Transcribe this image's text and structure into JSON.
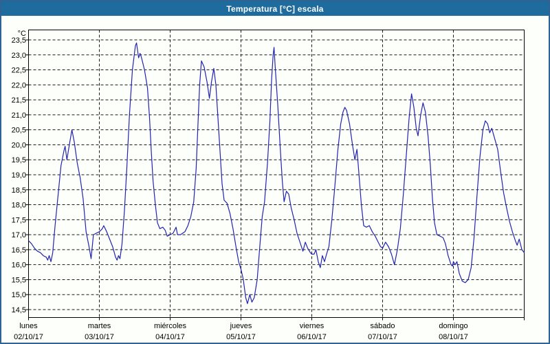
{
  "window": {
    "title": "Temperatura [°C] escala"
  },
  "axes": {
    "unit_label": "°C",
    "y_min": 14.5,
    "y_max": 23.5,
    "y_step": 0.5,
    "decimal_separator": ",",
    "days": [
      {
        "weekday": "lunes",
        "date": "02/10/17"
      },
      {
        "weekday": "martes",
        "date": "03/10/17"
      },
      {
        "weekday": "miércoles",
        "date": "04/10/17"
      },
      {
        "weekday": "jueves",
        "date": "05/10/17"
      },
      {
        "weekday": "viernes",
        "date": "06/10/17"
      },
      {
        "weekday": "sábado",
        "date": "07/10/17"
      },
      {
        "weekday": "domingo",
        "date": "08/10/17"
      }
    ]
  },
  "chart_data": {
    "type": "line",
    "title": "Temperatura [°C] escala",
    "ylabel": "°C",
    "ylim": [
      14.2,
      23.8
    ],
    "yticks": [
      23.5,
      23.0,
      22.5,
      22.0,
      21.5,
      21.0,
      20.5,
      20.0,
      19.5,
      19.0,
      18.5,
      18.0,
      17.5,
      17.0,
      16.5,
      16.0,
      15.5,
      15.0,
      14.5
    ],
    "x_unit": "hours since lunes 00:00",
    "xlim": [
      0,
      168
    ],
    "grid": true,
    "legend": "none",
    "series": [
      {
        "name": "Temperatura",
        "points": [
          [
            0,
            16.8
          ],
          [
            1,
            16.7
          ],
          [
            2,
            16.55
          ],
          [
            3,
            16.45
          ],
          [
            4,
            16.4
          ],
          [
            5,
            16.3
          ],
          [
            6,
            16.25
          ],
          [
            6.5,
            16.15
          ],
          [
            7,
            16.3
          ],
          [
            7.6,
            16.1
          ],
          [
            8.2,
            16.4
          ],
          [
            9,
            17.3
          ],
          [
            10,
            18.3
          ],
          [
            11,
            19.3
          ],
          [
            12,
            19.8
          ],
          [
            12.4,
            19.95
          ],
          [
            13,
            19.5
          ],
          [
            14,
            20.1
          ],
          [
            14.7,
            20.5
          ],
          [
            15.5,
            20.1
          ],
          [
            16.5,
            19.4
          ],
          [
            17.5,
            18.9
          ],
          [
            18.5,
            18.2
          ],
          [
            19.5,
            17.1
          ],
          [
            20.5,
            16.6
          ],
          [
            21.2,
            16.2
          ],
          [
            22,
            17.0
          ],
          [
            23,
            17.05
          ],
          [
            24,
            17.1
          ],
          [
            25,
            17.2
          ],
          [
            25.5,
            17.3
          ],
          [
            26.5,
            17.1
          ],
          [
            27.5,
            16.85
          ],
          [
            28.5,
            16.6
          ],
          [
            29.5,
            16.25
          ],
          [
            30,
            16.15
          ],
          [
            30.5,
            16.3
          ],
          [
            31,
            16.2
          ],
          [
            31.7,
            16.7
          ],
          [
            32.5,
            17.8
          ],
          [
            33.3,
            19.2
          ],
          [
            34.2,
            21.0
          ],
          [
            35.2,
            22.5
          ],
          [
            36.2,
            23.3
          ],
          [
            36.6,
            23.4
          ],
          [
            37.3,
            22.9
          ],
          [
            37.8,
            23.05
          ],
          [
            38.3,
            22.9
          ],
          [
            39.3,
            22.5
          ],
          [
            40.3,
            21.9
          ],
          [
            41,
            20.9
          ],
          [
            41.6,
            19.8
          ],
          [
            42.2,
            18.8
          ],
          [
            43,
            18.0
          ],
          [
            43.7,
            17.4
          ],
          [
            44.5,
            17.2
          ],
          [
            45.5,
            17.25
          ],
          [
            46.3,
            17.15
          ],
          [
            47,
            16.95
          ],
          [
            48,
            17.0
          ],
          [
            49,
            17.05
          ],
          [
            50,
            17.25
          ],
          [
            50.5,
            17.0
          ],
          [
            51.5,
            17.0
          ],
          [
            53,
            17.1
          ],
          [
            54,
            17.3
          ],
          [
            55,
            17.6
          ],
          [
            56,
            18.1
          ],
          [
            56.8,
            19.2
          ],
          [
            57.4,
            20.6
          ],
          [
            58,
            22.0
          ],
          [
            58.6,
            22.8
          ],
          [
            59.5,
            22.6
          ],
          [
            60.5,
            22.1
          ],
          [
            61.3,
            21.55
          ],
          [
            62,
            22.1
          ],
          [
            62.8,
            22.55
          ],
          [
            63.5,
            22.0
          ],
          [
            64.2,
            20.9
          ],
          [
            64.9,
            19.8
          ],
          [
            65.6,
            18.7
          ],
          [
            66.3,
            18.15
          ],
          [
            67.3,
            18.05
          ],
          [
            68.3,
            17.7
          ],
          [
            69.3,
            17.2
          ],
          [
            70.3,
            16.6
          ],
          [
            71.2,
            16.1
          ],
          [
            72,
            15.85
          ],
          [
            72.8,
            15.5
          ],
          [
            73.6,
            14.9
          ],
          [
            74.2,
            14.7
          ],
          [
            75,
            15.0
          ],
          [
            75.7,
            14.75
          ],
          [
            76.5,
            14.9
          ],
          [
            77.5,
            15.5
          ],
          [
            78.3,
            16.5
          ],
          [
            79.2,
            17.6
          ],
          [
            80,
            18.1
          ],
          [
            81,
            19.4
          ],
          [
            81.8,
            20.8
          ],
          [
            82.4,
            22.2
          ],
          [
            82.9,
            23.0
          ],
          [
            83.2,
            23.25
          ],
          [
            83.6,
            22.6
          ],
          [
            84.5,
            21.3
          ],
          [
            85.3,
            19.9
          ],
          [
            86,
            18.8
          ],
          [
            86.6,
            18.1
          ],
          [
            87.4,
            18.45
          ],
          [
            88.2,
            18.35
          ],
          [
            89,
            17.9
          ],
          [
            90,
            17.5
          ],
          [
            91,
            17.05
          ],
          [
            92,
            16.75
          ],
          [
            93,
            16.45
          ],
          [
            93.8,
            16.75
          ],
          [
            94.6,
            16.55
          ],
          [
            95.5,
            16.4
          ],
          [
            96,
            16.35
          ],
          [
            96.8,
            16.35
          ],
          [
            97.4,
            16.5
          ],
          [
            98.2,
            16.1
          ],
          [
            98.9,
            15.9
          ],
          [
            99.6,
            16.3
          ],
          [
            100.3,
            16.1
          ],
          [
            101,
            16.35
          ],
          [
            101.8,
            16.6
          ],
          [
            102.8,
            17.5
          ],
          [
            103.8,
            18.6
          ],
          [
            104.8,
            19.8
          ],
          [
            105.8,
            20.7
          ],
          [
            106.6,
            21.1
          ],
          [
            107.2,
            21.25
          ],
          [
            107.8,
            21.15
          ],
          [
            108.8,
            20.7
          ],
          [
            109.8,
            20.0
          ],
          [
            110.6,
            19.5
          ],
          [
            111.3,
            19.85
          ],
          [
            112,
            19.0
          ],
          [
            112.8,
            18.0
          ],
          [
            113.6,
            17.3
          ],
          [
            114.5,
            17.25
          ],
          [
            115.5,
            17.3
          ],
          [
            116.5,
            17.1
          ],
          [
            117.5,
            16.95
          ],
          [
            118.5,
            16.75
          ],
          [
            119.3,
            16.6
          ],
          [
            120,
            16.55
          ],
          [
            121,
            16.75
          ],
          [
            122,
            16.6
          ],
          [
            123,
            16.35
          ],
          [
            124,
            16.0
          ],
          [
            125,
            16.5
          ],
          [
            126,
            17.2
          ],
          [
            127,
            18.3
          ],
          [
            128,
            19.6
          ],
          [
            129,
            20.9
          ],
          [
            129.8,
            21.7
          ],
          [
            130.6,
            21.25
          ],
          [
            131.4,
            20.55
          ],
          [
            132,
            20.3
          ],
          [
            132.9,
            21.0
          ],
          [
            133.7,
            21.4
          ],
          [
            134.5,
            21.1
          ],
          [
            135.4,
            20.3
          ],
          [
            136.2,
            19.3
          ],
          [
            136.9,
            18.2
          ],
          [
            137.6,
            17.4
          ],
          [
            138.4,
            17.0
          ],
          [
            139.5,
            16.95
          ],
          [
            140.5,
            16.9
          ],
          [
            141.3,
            16.7
          ],
          [
            142.2,
            16.3
          ],
          [
            143.2,
            16.0
          ],
          [
            143.7,
            15.95
          ],
          [
            144,
            16.1
          ],
          [
            144.6,
            16.0
          ],
          [
            145.2,
            16.1
          ],
          [
            146,
            15.7
          ],
          [
            147,
            15.45
          ],
          [
            148,
            15.4
          ],
          [
            149,
            15.5
          ],
          [
            150,
            15.9
          ],
          [
            151,
            16.9
          ],
          [
            152,
            18.3
          ],
          [
            153,
            19.6
          ],
          [
            154,
            20.5
          ],
          [
            154.8,
            20.8
          ],
          [
            155.6,
            20.7
          ],
          [
            156.3,
            20.4
          ],
          [
            157,
            20.55
          ],
          [
            158,
            20.2
          ],
          [
            159,
            19.85
          ],
          [
            160,
            19.1
          ],
          [
            161,
            18.4
          ],
          [
            162,
            17.9
          ],
          [
            163,
            17.45
          ],
          [
            164,
            17.1
          ],
          [
            165,
            16.8
          ],
          [
            165.6,
            16.65
          ],
          [
            166.3,
            16.85
          ],
          [
            167.2,
            16.5
          ],
          [
            168,
            16.4
          ]
        ]
      }
    ]
  },
  "style": {
    "titlebar_color": "#1e6b9e",
    "border_color": "#2f6391",
    "background": "#fdfffa",
    "line_color": "#2222b2",
    "grid_color": "#1a1a1a",
    "title_text_color": "#ffffff"
  }
}
